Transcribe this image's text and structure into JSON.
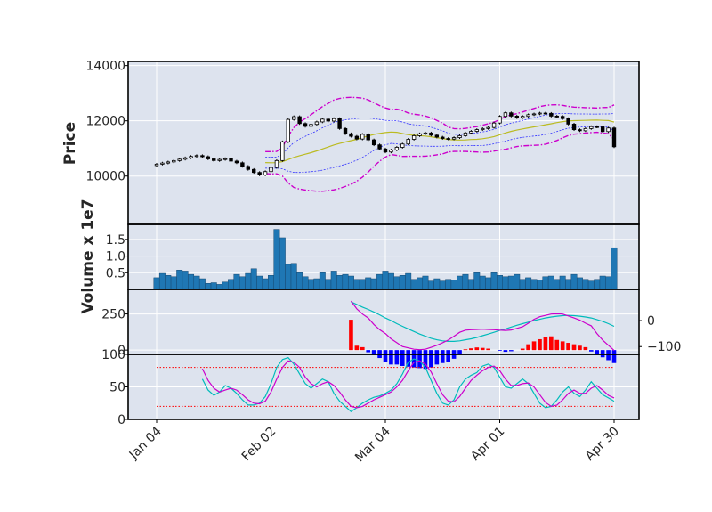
{
  "chart_data": {
    "type": "candlestick",
    "y_label_price": "Price",
    "y_label_volume": "Volume x 1e7",
    "x_tick_labels": [
      "Jan 04",
      "Feb 02",
      "Mar 04",
      "Apr 01",
      "Apr 30"
    ],
    "x_tick_index": [
      0,
      20,
      40,
      60,
      80
    ],
    "price_yticks": [
      10000,
      12000,
      14000
    ],
    "price_ylim": [
      8250,
      14150
    ],
    "volume_yticks": [
      "0.5",
      "1.0",
      "1.5"
    ],
    "volume_ylim": [
      0,
      1.95
    ],
    "macd_left_yticks": [
      0,
      250
    ],
    "macd_left_ylim": [
      -30,
      420
    ],
    "macd_right_yticks": [
      0,
      -100
    ],
    "macd_right_ylim": [
      -130,
      120
    ],
    "stoch_yticks": [
      0,
      50,
      100
    ],
    "stoch_ylim": [
      0,
      100
    ],
    "stoch_levels": [
      20,
      80
    ],
    "close": [
      10430,
      10470,
      10510,
      10560,
      10610,
      10660,
      10710,
      10740,
      10700,
      10620,
      10560,
      10600,
      10630,
      10540,
      10480,
      10350,
      10240,
      10130,
      10040,
      10160,
      10310,
      10560,
      11240,
      12050,
      12150,
      11900,
      11800,
      11870,
      11960,
      12060,
      11990,
      12080,
      11720,
      11530,
      11440,
      11340,
      11510,
      11310,
      11130,
      10980,
      10870,
      10940,
      11040,
      11160,
      11330,
      11460,
      11530,
      11560,
      11480,
      11410,
      11360,
      11340,
      11390,
      11460,
      11560,
      11620,
      11680,
      11720,
      11760,
      11920,
      12160,
      12290,
      12170,
      12110,
      12160,
      12220,
      12250,
      12280,
      12270,
      12170,
      12160,
      12080,
      11880,
      11680,
      11640,
      11720,
      11790,
      11780,
      11610,
      11740,
      11060
    ],
    "volume": [
      0.35,
      0.48,
      0.42,
      0.38,
      0.58,
      0.55,
      0.45,
      0.4,
      0.32,
      0.18,
      0.2,
      0.15,
      0.22,
      0.3,
      0.45,
      0.38,
      0.48,
      0.62,
      0.4,
      0.32,
      0.42,
      1.8,
      1.55,
      0.75,
      0.78,
      0.5,
      0.38,
      0.3,
      0.32,
      0.5,
      0.3,
      0.55,
      0.42,
      0.45,
      0.4,
      0.3,
      0.3,
      0.35,
      0.32,
      0.45,
      0.55,
      0.48,
      0.38,
      0.42,
      0.48,
      0.3,
      0.35,
      0.4,
      0.25,
      0.32,
      0.25,
      0.3,
      0.28,
      0.4,
      0.45,
      0.3,
      0.5,
      0.4,
      0.35,
      0.5,
      0.42,
      0.38,
      0.4,
      0.45,
      0.3,
      0.35,
      0.3,
      0.28,
      0.38,
      0.4,
      0.3,
      0.4,
      0.3,
      0.45,
      0.35,
      0.3,
      0.25,
      0.3,
      0.4,
      0.38,
      1.25
    ],
    "macd_histogram": [
      null,
      null,
      null,
      null,
      null,
      null,
      null,
      null,
      null,
      null,
      null,
      null,
      null,
      null,
      null,
      null,
      null,
      null,
      null,
      null,
      null,
      null,
      null,
      null,
      null,
      null,
      null,
      null,
      null,
      null,
      null,
      null,
      null,
      null,
      210,
      30,
      20,
      -15,
      -35,
      -55,
      -80,
      -100,
      -100,
      -110,
      -115,
      -120,
      -125,
      -130,
      -120,
      -100,
      -90,
      -80,
      -60,
      -30,
      5,
      12,
      18,
      15,
      10,
      0,
      -5,
      -12,
      -8,
      0,
      10,
      40,
      60,
      75,
      90,
      95,
      70,
      60,
      50,
      40,
      30,
      20,
      -10,
      -30,
      -50,
      -70,
      -90
    ],
    "macd_line": [
      null,
      null,
      null,
      null,
      null,
      null,
      null,
      null,
      null,
      null,
      null,
      null,
      null,
      null,
      null,
      null,
      null,
      null,
      null,
      null,
      null,
      null,
      null,
      null,
      null,
      null,
      null,
      null,
      null,
      null,
      null,
      null,
      null,
      null,
      75,
      45,
      25,
      10,
      -15,
      -35,
      -50,
      -70,
      -85,
      -100,
      -105,
      -110,
      -112,
      -110,
      -103,
      -95,
      -85,
      -75,
      -60,
      -45,
      -37,
      -35,
      -34,
      -33,
      -34,
      -35,
      -37,
      -38,
      -36,
      -30,
      -24,
      -10,
      5,
      15,
      20,
      25,
      26,
      25,
      18,
      10,
      2,
      -10,
      -20,
      -50,
      -75,
      -95,
      -115
    ],
    "macd_signal": [
      null,
      null,
      null,
      null,
      null,
      null,
      null,
      null,
      null,
      null,
      null,
      null,
      null,
      null,
      null,
      null,
      null,
      null,
      null,
      null,
      null,
      null,
      null,
      null,
      null,
      null,
      null,
      null,
      null,
      null,
      null,
      null,
      null,
      null,
      72,
      62,
      52,
      43,
      33,
      22,
      10,
      0,
      -12,
      -22,
      -32,
      -42,
      -52,
      -60,
      -68,
      -74,
      -78,
      -80,
      -80,
      -78,
      -74,
      -70,
      -65,
      -58,
      -52,
      -45,
      -38,
      -32,
      -25,
      -18,
      -12,
      -6,
      0,
      5,
      10,
      14,
      17,
      19,
      20,
      19,
      17,
      14,
      10,
      4,
      -3,
      -12,
      -22
    ],
    "stoch_k": [
      null,
      null,
      null,
      null,
      null,
      null,
      null,
      null,
      62,
      45,
      37,
      42,
      52,
      48,
      40,
      30,
      22,
      22,
      25,
      35,
      55,
      80,
      92,
      95,
      85,
      70,
      55,
      48,
      55,
      62,
      58,
      40,
      28,
      20,
      12,
      18,
      25,
      30,
      34,
      36,
      40,
      45,
      55,
      70,
      88,
      93,
      90,
      80,
      60,
      40,
      25,
      22,
      30,
      50,
      62,
      68,
      72,
      82,
      85,
      80,
      65,
      50,
      48,
      55,
      62,
      55,
      40,
      25,
      18,
      20,
      30,
      42,
      50,
      40,
      35,
      45,
      58,
      48,
      38,
      33,
      28
    ],
    "stoch_d": [
      null,
      null,
      null,
      null,
      null,
      null,
      null,
      null,
      78,
      60,
      48,
      42,
      45,
      48,
      45,
      38,
      30,
      25,
      24,
      28,
      42,
      62,
      80,
      90,
      88,
      80,
      65,
      55,
      50,
      55,
      58,
      52,
      42,
      30,
      20,
      18,
      20,
      25,
      30,
      34,
      38,
      42,
      50,
      60,
      75,
      88,
      90,
      85,
      73,
      55,
      38,
      28,
      27,
      35,
      48,
      60,
      68,
      75,
      80,
      82,
      75,
      62,
      52,
      52,
      55,
      56,
      50,
      38,
      26,
      20,
      22,
      30,
      40,
      45,
      40,
      40,
      48,
      52,
      45,
      37,
      33
    ],
    "colors": {
      "up": "#ffffff",
      "down": "#000000",
      "volume": "#1f77b4",
      "hist_up": "#ff0000",
      "hist_down": "#0000ff",
      "macd_line": "#cc00cc",
      "signal": "#00bbbb",
      "sma": "#bbbb22",
      "inner_band": "#3333ff",
      "outer_band": "#cc00cc",
      "level": "#ff0000",
      "panel_bg": "#dde3ee",
      "grid": "#ffffff"
    }
  }
}
